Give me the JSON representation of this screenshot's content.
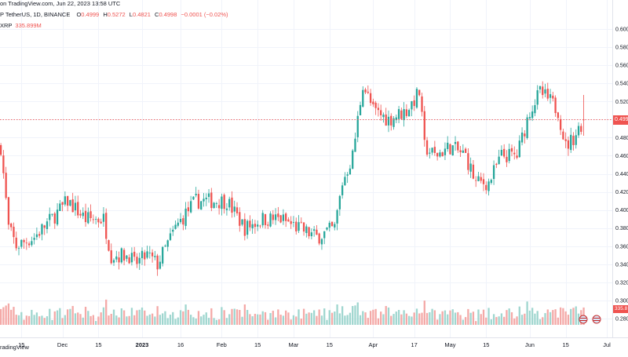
{
  "header": {
    "published_line": "on TradingView.com, Jun 22, 2023 13:58 UTC",
    "symbol_line": "P TetherUS, 1D, BINANCE",
    "ohlc": [
      {
        "label": "O",
        "value": "0.4999"
      },
      {
        "label": "H",
        "value": "0.5272"
      },
      {
        "label": "L",
        "value": "0.4821"
      },
      {
        "label": "C",
        "value": "0.4998"
      },
      {
        "label": "",
        "value": "−0.0001 (−0.02%)"
      }
    ],
    "volume_label": "XRP",
    "volume_value": "335.899M"
  },
  "footer": {
    "brand": "radingView"
  },
  "price_tag": "0.499",
  "volume_tag": "335.8",
  "colors": {
    "up": "#26a69a",
    "down": "#ef5350",
    "up_volume": "#9fd6cf",
    "down_volume": "#f4a9a7",
    "grid": "#f0f3fa",
    "price_line": "#ef5350"
  },
  "chart_data": {
    "type": "candlestick",
    "symbol": "XRP/USDT",
    "timeframe": "1D",
    "exchange": "BINANCE",
    "y_range": [
      0.275,
      0.605
    ],
    "y_ticks": [
      "0.600",
      "0.580",
      "0.560",
      "0.540",
      "0.520",
      "0.500",
      "0.480",
      "0.460",
      "0.440",
      "0.420",
      "0.400",
      "0.380",
      "0.360",
      "0.340",
      "0.320",
      "0.300",
      "0.280"
    ],
    "x_ticks": [
      "15",
      "Dec",
      "15",
      "2023",
      "16",
      "Feb",
      "15",
      "Mar",
      "15",
      "Apr",
      "17",
      "May",
      "15",
      "Jun",
      "15",
      "Jul"
    ],
    "last_close": 0.4998,
    "volume_last": "335.899M",
    "series_anchors": [
      {
        "date": "2022-11-07",
        "close": 0.47
      },
      {
        "date": "2022-11-10",
        "close": 0.38
      },
      {
        "date": "2022-11-13",
        "close": 0.36
      },
      {
        "date": "2022-11-20",
        "close": 0.37
      },
      {
        "date": "2022-11-30",
        "close": 0.4
      },
      {
        "date": "2022-12-03",
        "close": 0.41
      },
      {
        "date": "2022-12-10",
        "close": 0.39
      },
      {
        "date": "2022-12-17",
        "close": 0.39
      },
      {
        "date": "2022-12-20",
        "close": 0.35
      },
      {
        "date": "2022-12-27",
        "close": 0.35
      },
      {
        "date": "2022-12-29",
        "close": 0.34
      },
      {
        "date": "2023-01-03",
        "close": 0.35
      },
      {
        "date": "2023-01-07",
        "close": 0.34
      },
      {
        "date": "2023-01-14",
        "close": 0.38
      },
      {
        "date": "2023-01-19",
        "close": 0.4
      },
      {
        "date": "2023-01-22",
        "close": 0.41
      },
      {
        "date": "2023-01-29",
        "close": 0.41
      },
      {
        "date": "2023-02-03",
        "close": 0.41
      },
      {
        "date": "2023-02-10",
        "close": 0.38
      },
      {
        "date": "2023-02-17",
        "close": 0.39
      },
      {
        "date": "2023-02-24",
        "close": 0.39
      },
      {
        "date": "2023-03-03",
        "close": 0.38
      },
      {
        "date": "2023-03-10",
        "close": 0.37
      },
      {
        "date": "2023-03-17",
        "close": 0.38
      },
      {
        "date": "2023-03-20",
        "close": 0.43
      },
      {
        "date": "2023-03-24",
        "close": 0.46
      },
      {
        "date": "2023-03-28",
        "close": 0.54
      },
      {
        "date": "2023-04-01",
        "close": 0.51
      },
      {
        "date": "2023-04-07",
        "close": 0.5
      },
      {
        "date": "2023-04-14",
        "close": 0.51
      },
      {
        "date": "2023-04-19",
        "close": 0.53
      },
      {
        "date": "2023-04-21",
        "close": 0.47
      },
      {
        "date": "2023-04-25",
        "close": 0.46
      },
      {
        "date": "2023-05-01",
        "close": 0.47
      },
      {
        "date": "2023-05-07",
        "close": 0.46
      },
      {
        "date": "2023-05-11",
        "close": 0.43
      },
      {
        "date": "2023-05-16",
        "close": 0.43
      },
      {
        "date": "2023-05-21",
        "close": 0.46
      },
      {
        "date": "2023-05-27",
        "close": 0.46
      },
      {
        "date": "2023-06-01",
        "close": 0.51
      },
      {
        "date": "2023-06-05",
        "close": 0.53
      },
      {
        "date": "2023-06-09",
        "close": 0.52
      },
      {
        "date": "2023-06-12",
        "close": 0.51
      },
      {
        "date": "2023-06-15",
        "close": 0.47
      },
      {
        "date": "2023-06-18",
        "close": 0.48
      },
      {
        "date": "2023-06-22",
        "close": 0.4998
      }
    ]
  }
}
